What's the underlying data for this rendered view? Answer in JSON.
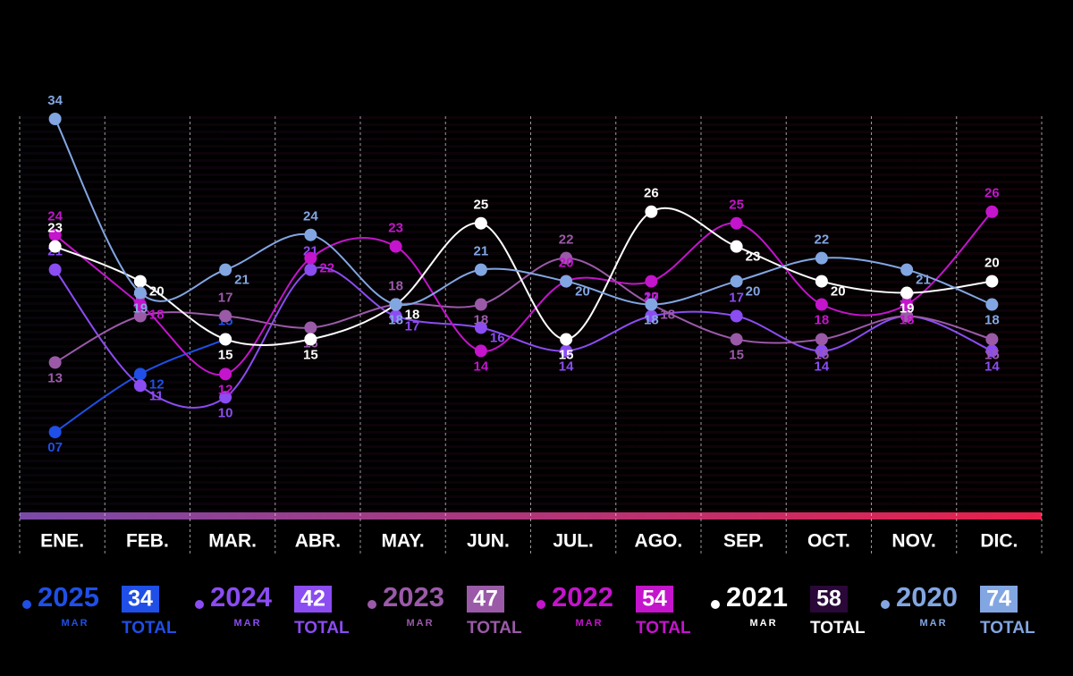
{
  "chart_data": {
    "type": "line",
    "categories": [
      "ENE.",
      "FEB.",
      "MAR.",
      "ABR.",
      "MAY.",
      "JUN.",
      "JUL.",
      "AGO.",
      "SEP.",
      "OCT.",
      "NOV.",
      "DIC."
    ],
    "ylim": [
      0,
      34
    ],
    "total_label": "TOTAL",
    "series": [
      {
        "name": "2025",
        "color": "#1f4fe6",
        "box_color": "#1f4fe6",
        "period": "MAR",
        "total": 34,
        "values": [
          7,
          12,
          15,
          null,
          null,
          null,
          null,
          null,
          null,
          null,
          null,
          null
        ],
        "value_labels": [
          "07",
          "12",
          "15",
          null,
          null,
          null,
          null,
          null,
          null,
          null,
          null,
          null
        ]
      },
      {
        "name": "2024",
        "color": "#8b4cf2",
        "box_color": "#8b4cf2",
        "period": "MAR",
        "total": 42,
        "values": [
          21,
          11,
          10,
          21,
          17,
          16,
          14,
          17,
          17,
          14,
          17,
          14
        ]
      },
      {
        "name": "2023",
        "color": "#9a5aa8",
        "box_color": "#9a5aa8",
        "period": "MAR",
        "total": 47,
        "values": [
          13,
          17,
          17,
          16,
          18,
          18,
          22,
          18,
          15,
          15,
          17,
          15
        ]
      },
      {
        "name": "2022",
        "color": "#c414cc",
        "box_color": "#c414cc",
        "period": "MAR",
        "total": 54,
        "values": [
          24,
          18,
          12,
          22,
          23,
          14,
          20,
          20,
          25,
          18,
          18,
          26
        ]
      },
      {
        "name": "2021",
        "color": "#ffffff",
        "box_color": "#2a0838",
        "period": "MAR",
        "total": 58,
        "values": [
          23,
          20,
          15,
          15,
          18,
          25,
          15,
          26,
          23,
          20,
          19,
          20
        ]
      },
      {
        "name": "2020",
        "color": "#82a6e2",
        "box_color": "#82a6e2",
        "period": "MAR",
        "total": 74,
        "values": [
          34,
          19,
          21,
          24,
          18,
          21,
          20,
          18,
          20,
          22,
          21,
          18
        ]
      }
    ]
  }
}
